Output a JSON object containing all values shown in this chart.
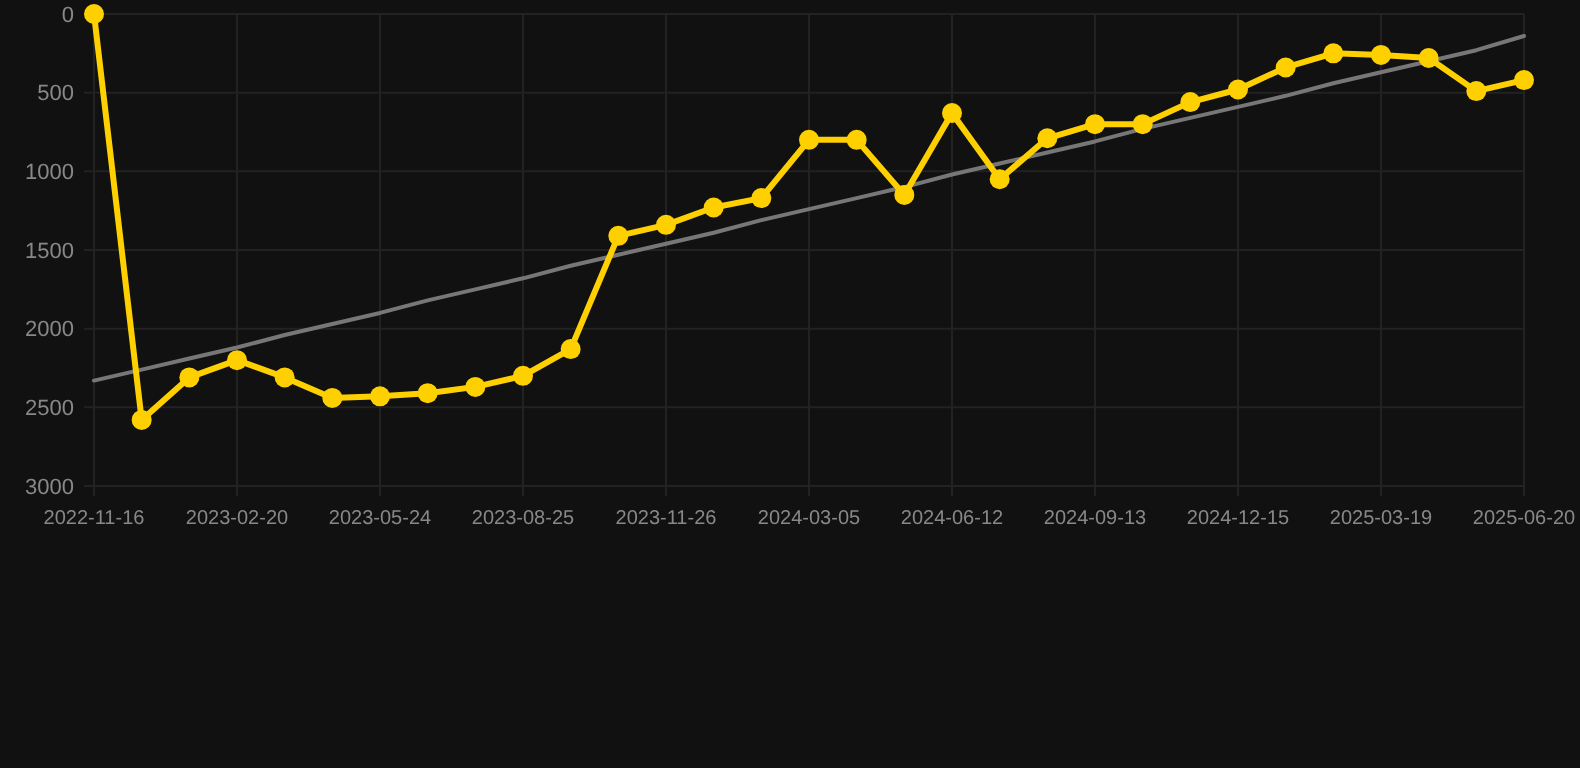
{
  "chart_data": {
    "type": "line",
    "categories": [
      "2022-11-16",
      null,
      null,
      "2023-02-20",
      null,
      null,
      "2023-05-24",
      null,
      null,
      "2023-08-25",
      null,
      null,
      "2023-11-26",
      null,
      null,
      "2024-03-05",
      null,
      null,
      "2024-06-12",
      null,
      null,
      "2024-09-13",
      null,
      null,
      "2024-12-15",
      null,
      null,
      "2025-03-19",
      null,
      null,
      "2025-06-20"
    ],
    "series": [
      {
        "color": "#ffd000",
        "marker": "circle",
        "values": [
          0,
          2580,
          2310,
          2200,
          2310,
          2440,
          2430,
          2410,
          2370,
          2300,
          2130,
          1410,
          1340,
          1230,
          1170,
          800,
          800,
          1150,
          630,
          1050,
          790,
          700,
          700,
          560,
          480,
          340,
          250,
          260,
          280,
          490,
          420
        ]
      },
      {
        "color": "#777777",
        "marker": "none",
        "values": [
          2330,
          2260,
          2190,
          2120,
          2040,
          1970,
          1900,
          1820,
          1750,
          1680,
          1600,
          1530,
          1460,
          1390,
          1310,
          1240,
          1170,
          1100,
          1020,
          950,
          880,
          810,
          730,
          660,
          590,
          520,
          440,
          370,
          300,
          230,
          140
        ]
      }
    ],
    "ylim": [
      3000,
      0
    ],
    "yticks": [
      0,
      500,
      1000,
      1500,
      2000,
      2500,
      3000
    ],
    "grid": true
  }
}
